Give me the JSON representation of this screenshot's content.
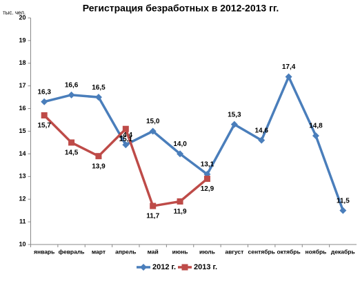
{
  "chart_data": {
    "type": "line",
    "title": "Регистрация безработных в 2012-2013 гг.",
    "y_axis_label": "тыс. чел.",
    "categories": [
      "январь",
      "февраль",
      "март",
      "апрель",
      "май",
      "июнь",
      "июль",
      "август",
      "сентябрь",
      "октябрь",
      "ноябрь",
      "декабрь"
    ],
    "series": [
      {
        "name": "2012 г.",
        "color": "#4a7ebb",
        "marker": "diamond",
        "values": [
          16.3,
          16.6,
          16.5,
          14.4,
          15.0,
          14.0,
          13.1,
          15.3,
          14.6,
          17.4,
          14.8,
          11.5
        ],
        "value_labels": [
          "16,3",
          "16,6",
          "16,5",
          "14,4",
          "15,0",
          "14,0",
          "13,1",
          "15,3",
          "14,6",
          "17,4",
          "14,8",
          "11,5"
        ]
      },
      {
        "name": "2013 г.",
        "color": "#be4b48",
        "marker": "square",
        "values": [
          15.7,
          14.5,
          13.9,
          15.1,
          11.7,
          11.9,
          12.9,
          null,
          null,
          null,
          null,
          null
        ],
        "value_labels": [
          "15,7",
          "14,5",
          "13,9",
          "15,1",
          "11,7",
          "11,9",
          "12,9",
          null,
          null,
          null,
          null,
          null
        ]
      }
    ],
    "ylim": [
      10,
      20
    ],
    "yticks": [
      10,
      11,
      12,
      13,
      14,
      15,
      16,
      17,
      18,
      19,
      20
    ],
    "grid": false,
    "legend": "bottom"
  }
}
